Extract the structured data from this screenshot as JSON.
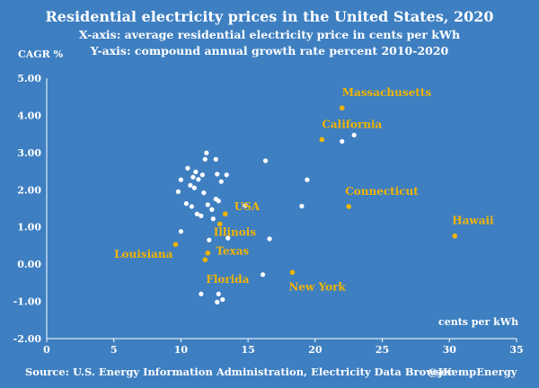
{
  "chart_data": {
    "type": "scatter",
    "title": "Residential electricity prices in the United States, 2020",
    "subtitle_lines": [
      "X-axis: average residential electricity price in cents per kWh",
      "Y-axis: compound annual growth rate percent 2010-2020"
    ],
    "ylabel": "CAGR %",
    "xlabel": "cents per kWh",
    "xlim": [
      0,
      35
    ],
    "ylim": [
      -2,
      5
    ],
    "x_ticks": [
      0,
      5,
      10,
      15,
      20,
      25,
      30,
      35
    ],
    "y_ticks": [
      "-2.00",
      "-1.00",
      "0.00",
      "1.00",
      "2.00",
      "3.00",
      "4.00",
      "5.00"
    ],
    "grid": false,
    "colors": {
      "background": "#3e7fc1",
      "points": "#ffffff",
      "highlight": "#f2b400",
      "text": "#ffffff"
    },
    "series": [
      {
        "role": "other-states",
        "points": [
          {
            "x": 11.9,
            "y": 2.99
          },
          {
            "x": 11.8,
            "y": 2.82
          },
          {
            "x": 12.6,
            "y": 2.82
          },
          {
            "x": 10.5,
            "y": 2.58
          },
          {
            "x": 11.1,
            "y": 2.48
          },
          {
            "x": 11.6,
            "y": 2.4
          },
          {
            "x": 10.9,
            "y": 2.34
          },
          {
            "x": 11.3,
            "y": 2.28
          },
          {
            "x": 12.7,
            "y": 2.42
          },
          {
            "x": 13.4,
            "y": 2.4
          },
          {
            "x": 10.0,
            "y": 2.27
          },
          {
            "x": 13.0,
            "y": 2.22
          },
          {
            "x": 10.7,
            "y": 2.12
          },
          {
            "x": 11.0,
            "y": 2.05
          },
          {
            "x": 9.8,
            "y": 1.95
          },
          {
            "x": 11.7,
            "y": 1.92
          },
          {
            "x": 12.6,
            "y": 1.75
          },
          {
            "x": 12.8,
            "y": 1.7
          },
          {
            "x": 10.4,
            "y": 1.63
          },
          {
            "x": 10.8,
            "y": 1.55
          },
          {
            "x": 12.0,
            "y": 1.6
          },
          {
            "x": 12.3,
            "y": 1.47
          },
          {
            "x": 11.2,
            "y": 1.35
          },
          {
            "x": 11.5,
            "y": 1.3
          },
          {
            "x": 12.4,
            "y": 1.22
          },
          {
            "x": 10.0,
            "y": 0.88
          },
          {
            "x": 12.1,
            "y": 0.65
          },
          {
            "x": 13.5,
            "y": 0.7
          },
          {
            "x": 14.8,
            "y": 1.58
          },
          {
            "x": 16.3,
            "y": 2.78
          },
          {
            "x": 16.6,
            "y": 0.68
          },
          {
            "x": 19.4,
            "y": 2.27
          },
          {
            "x": 19.0,
            "y": 1.56
          },
          {
            "x": 16.1,
            "y": -0.28
          },
          {
            "x": 22.0,
            "y": 3.3
          },
          {
            "x": 22.9,
            "y": 3.47
          },
          {
            "x": 11.5,
            "y": -0.8
          },
          {
            "x": 12.8,
            "y": -0.8
          },
          {
            "x": 13.1,
            "y": -0.95
          },
          {
            "x": 12.7,
            "y": -1.02
          }
        ]
      },
      {
        "role": "highlighted",
        "points": [
          {
            "name": "Massachusetts",
            "x": 22.0,
            "y": 4.2
          },
          {
            "name": "California",
            "x": 20.5,
            "y": 3.35
          },
          {
            "name": "Connecticut",
            "x": 22.5,
            "y": 1.55
          },
          {
            "name": "Hawaii",
            "x": 30.4,
            "y": 0.76
          },
          {
            "name": "USA",
            "x": 13.3,
            "y": 1.35
          },
          {
            "name": "Illinois",
            "x": 12.9,
            "y": 1.08
          },
          {
            "name": "Louisiana",
            "x": 9.6,
            "y": 0.53
          },
          {
            "name": "Texas",
            "x": 12.0,
            "y": 0.3
          },
          {
            "name": "Florida",
            "x": 11.8,
            "y": 0.12
          },
          {
            "name": "New York",
            "x": 18.3,
            "y": -0.22
          }
        ]
      }
    ]
  },
  "footer": {
    "source": "Source: U.S. Energy Information Administration, Electricity Data Browser",
    "credit": "@JKempEnergy"
  }
}
